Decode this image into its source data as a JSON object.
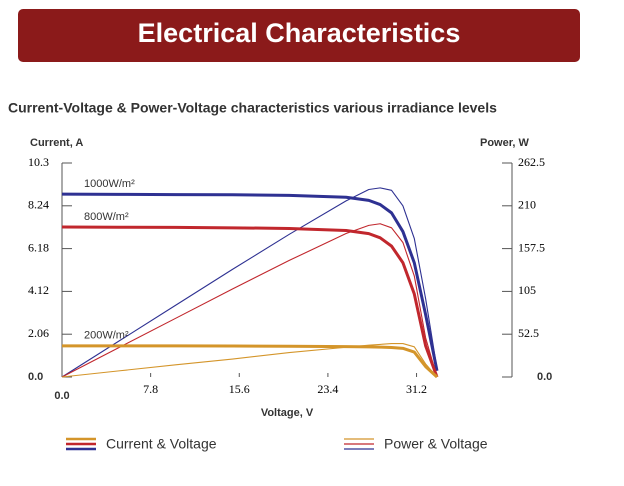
{
  "header": {
    "title": "Electrical Characteristics"
  },
  "chart_data": {
    "type": "line",
    "title": "Current-Voltage & Power-Voltage characteristics various irradiance levels",
    "ylabel": "Current, A",
    "y2label": "Power, W",
    "xlabel": "Voltage, V",
    "x": [
      0,
      5,
      10,
      15,
      20,
      25,
      27,
      28,
      29,
      30,
      31,
      32,
      33
    ],
    "xlim": [
      0,
      39.6
    ],
    "xticks": [
      {
        "value": 0,
        "label": "0.0"
      },
      7.8,
      15.6,
      23.4,
      31.2
    ],
    "ylim": [
      0,
      10.3
    ],
    "yticks": [
      {
        "value": 0,
        "label": "0.0"
      },
      2.06,
      4.12,
      6.18,
      8.24,
      10.3
    ],
    "y2lim": [
      0,
      262.5
    ],
    "y2ticks": [
      {
        "value": 0,
        "label": "0.0"
      },
      52.5,
      105,
      157.5,
      210,
      262.5
    ],
    "series": [
      {
        "name": "1000W/m²",
        "color": "#2e3192",
        "current": [
          8.8,
          8.79,
          8.78,
          8.77,
          8.74,
          8.65,
          8.5,
          8.3,
          7.9,
          7.0,
          5.5,
          3.0,
          0.3
        ],
        "power": [
          0,
          44,
          88,
          132,
          175,
          216,
          230,
          232,
          229,
          210,
          170,
          96,
          10
        ]
      },
      {
        "name": "800W/m²",
        "color": "#c1272d",
        "current": [
          7.22,
          7.21,
          7.2,
          7.18,
          7.15,
          7.05,
          6.9,
          6.7,
          6.3,
          5.5,
          4.0,
          1.5,
          0
        ],
        "power": [
          0,
          36,
          72,
          108,
          143,
          176,
          186,
          188,
          183,
          165,
          124,
          48,
          0
        ]
      },
      {
        "name": "200W/m²",
        "color": "#d4952a",
        "current": [
          1.5,
          1.5,
          1.5,
          1.49,
          1.48,
          1.46,
          1.45,
          1.44,
          1.42,
          1.38,
          1.2,
          0.5,
          0
        ],
        "power": [
          0,
          7.5,
          15,
          22,
          30,
          36.5,
          39,
          40,
          41,
          41,
          37,
          16,
          0
        ]
      }
    ],
    "legend": [
      "Current & Voltage",
      "Power & Voltage"
    ]
  }
}
